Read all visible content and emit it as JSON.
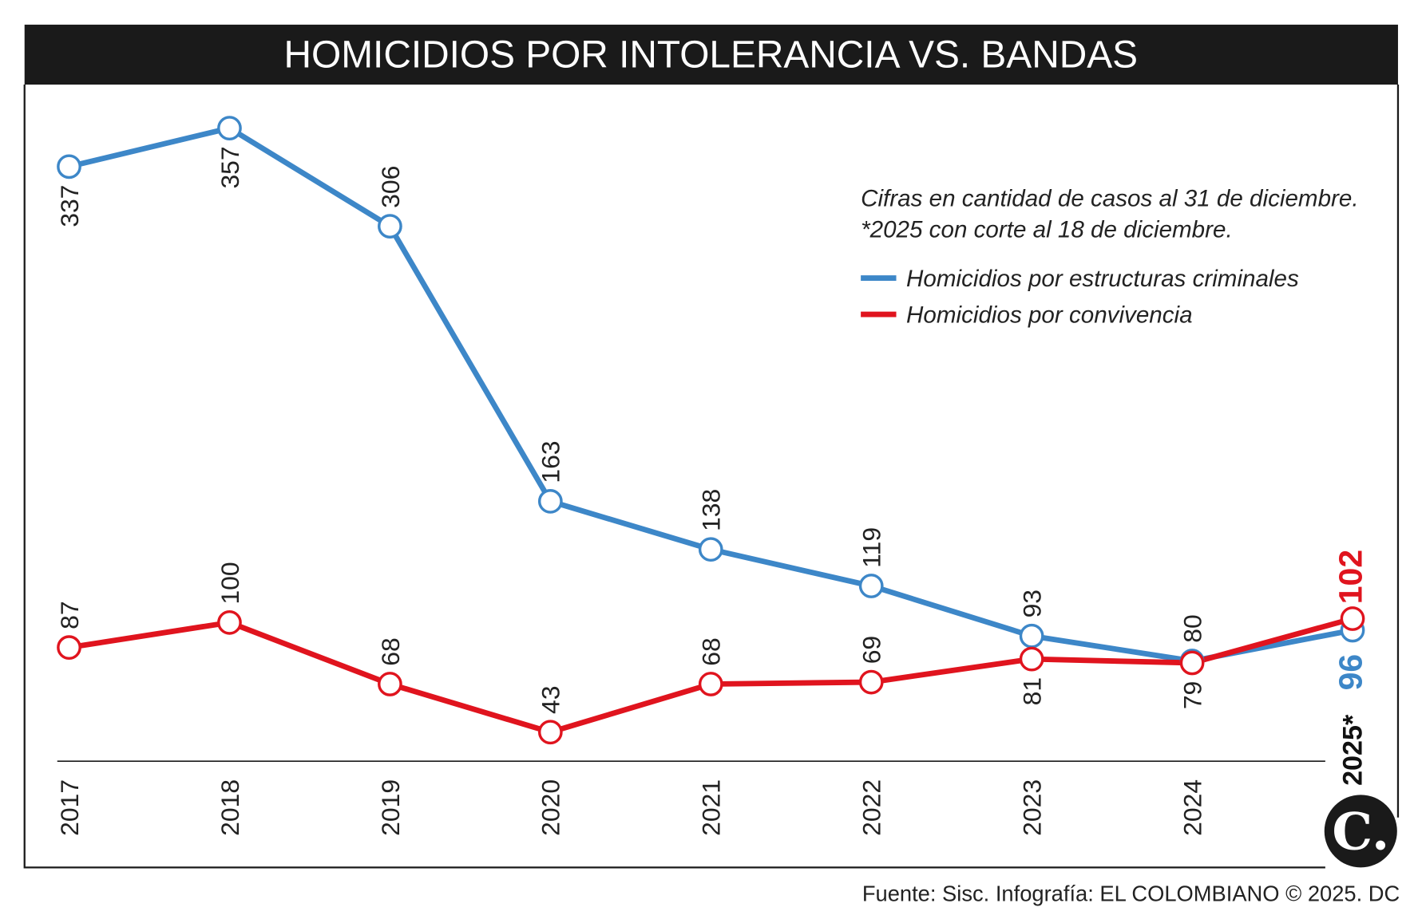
{
  "chart_data": {
    "type": "line",
    "title": "HOMICIDIOS POR INTOLERANCIA VS. BANDAS",
    "categories": [
      "2017",
      "2018",
      "2019",
      "2020",
      "2021",
      "2022",
      "2023",
      "2024",
      "2025*"
    ],
    "series": [
      {
        "name": "Homicidios por estructuras criminales",
        "color": "#3d87c8",
        "values": [
          337,
          357,
          306,
          163,
          138,
          119,
          93,
          80,
          96
        ]
      },
      {
        "name": "Homicidios por convivencia",
        "color": "#e0141e",
        "values": [
          87,
          100,
          68,
          43,
          68,
          69,
          81,
          79,
          102
        ]
      }
    ],
    "notes": [
      "Cifras en cantidad de casos al 31 de diciembre.",
      "*2025 con corte al 18 de diciembre."
    ],
    "legend": "top-right",
    "grid": false,
    "xlabel": "",
    "ylabel": ""
  },
  "footer": "Fuente: Sisc. Infografía: EL COLOMBIANO © 2025. DC",
  "logo_text": "C."
}
